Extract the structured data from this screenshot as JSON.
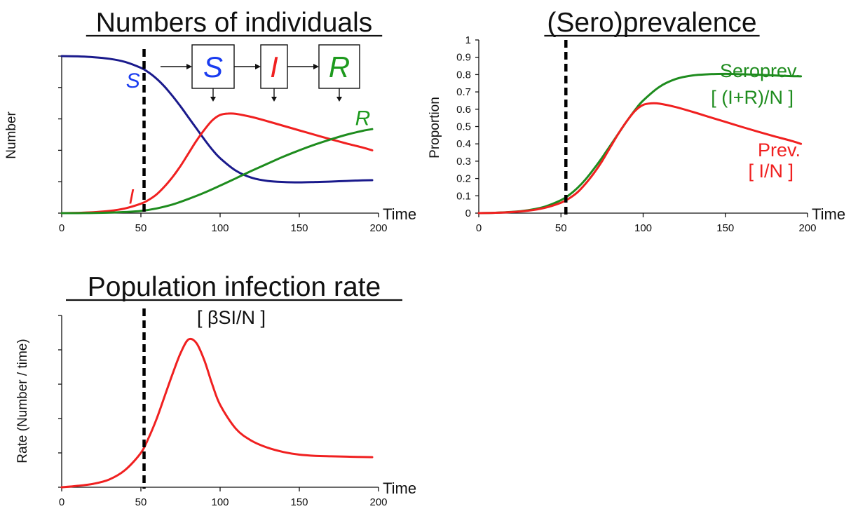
{
  "colors": {
    "S": "#1a1a8c",
    "I": "#f02020",
    "R": "#1e8c1e",
    "box_S": "#1a3cf0",
    "box_I": "#f02020",
    "box_R": "#1e9a1e"
  },
  "diagram": {
    "boxes": [
      "S",
      "I",
      "R"
    ]
  },
  "chart_data": [
    {
      "type": "line",
      "title": "Numbers of individuals",
      "xlabel": "Time",
      "ylabel": "Number",
      "xlim": [
        0,
        200
      ],
      "xticks": [
        "0",
        "50",
        "100",
        "150",
        "200"
      ],
      "ylim": [
        0,
        1
      ],
      "y_tick_labels": false,
      "vline_x": 52,
      "series": [
        {
          "name": "S",
          "color": "#1a1a8c",
          "x": [
            0,
            10,
            20,
            30,
            40,
            50,
            55,
            60,
            65,
            70,
            75,
            80,
            85,
            90,
            95,
            100,
            110,
            120,
            130,
            140,
            150,
            160,
            170,
            180,
            190,
            196
          ],
          "y": [
            1.0,
            0.998,
            0.993,
            0.983,
            0.963,
            0.925,
            0.895,
            0.855,
            0.805,
            0.745,
            0.68,
            0.61,
            0.54,
            0.47,
            0.405,
            0.35,
            0.27,
            0.225,
            0.205,
            0.198,
            0.196,
            0.198,
            0.201,
            0.205,
            0.209,
            0.21
          ]
        },
        {
          "name": "I",
          "color": "#f02020",
          "x": [
            0,
            10,
            20,
            30,
            40,
            50,
            55,
            60,
            65,
            70,
            75,
            80,
            85,
            90,
            95,
            100,
            105,
            110,
            120,
            130,
            140,
            150,
            160,
            170,
            180,
            190,
            196
          ],
          "y": [
            0.0,
            0.002,
            0.006,
            0.014,
            0.03,
            0.06,
            0.085,
            0.12,
            0.17,
            0.23,
            0.3,
            0.38,
            0.46,
            0.53,
            0.59,
            0.625,
            0.634,
            0.632,
            0.612,
            0.585,
            0.556,
            0.527,
            0.498,
            0.47,
            0.443,
            0.418,
            0.4
          ]
        },
        {
          "name": "R",
          "color": "#1e8c1e",
          "x": [
            0,
            10,
            20,
            30,
            40,
            50,
            60,
            70,
            80,
            90,
            100,
            110,
            120,
            130,
            140,
            150,
            160,
            170,
            180,
            190,
            196
          ],
          "y": [
            0.0,
            0.0,
            0.001,
            0.003,
            0.007,
            0.014,
            0.03,
            0.055,
            0.09,
            0.13,
            0.175,
            0.222,
            0.27,
            0.315,
            0.36,
            0.4,
            0.437,
            0.47,
            0.5,
            0.524,
            0.535
          ]
        }
      ],
      "labels": [
        {
          "text": "S",
          "color": "#1a3cf0",
          "x": 45,
          "y": 0.8
        },
        {
          "text": "I",
          "color": "#f02020",
          "x": 44,
          "y": 0.06
        },
        {
          "text": "R",
          "color": "#1e9a1e",
          "x": 190,
          "y": 0.56
        }
      ]
    },
    {
      "type": "line",
      "title": "(Sero)prevalence",
      "xlabel": "Time",
      "ylabel": "Proportion",
      "xlim": [
        0,
        200
      ],
      "xticks": [
        "0",
        "50",
        "100",
        "150",
        "200"
      ],
      "ylim": [
        0,
        1
      ],
      "yticks": [
        "0",
        "0.1",
        "0.2",
        "0.3",
        "0.4",
        "0.5",
        "0.6",
        "0.7",
        "0.8",
        "0.9",
        "1"
      ],
      "vline_x": 53,
      "series": [
        {
          "name": "Seroprev.",
          "color": "#1e8c1e",
          "x": [
            0,
            10,
            20,
            30,
            40,
            50,
            55,
            60,
            65,
            70,
            75,
            80,
            85,
            90,
            95,
            100,
            110,
            120,
            130,
            140,
            150,
            160,
            170,
            180,
            190,
            196
          ],
          "y": [
            0.0,
            0.002,
            0.007,
            0.017,
            0.037,
            0.075,
            0.105,
            0.145,
            0.195,
            0.255,
            0.32,
            0.39,
            0.46,
            0.53,
            0.595,
            0.65,
            0.73,
            0.775,
            0.795,
            0.802,
            0.804,
            0.802,
            0.799,
            0.795,
            0.791,
            0.79
          ]
        },
        {
          "name": "Prev.",
          "color": "#f02020",
          "x": [
            0,
            10,
            20,
            30,
            40,
            50,
            55,
            60,
            65,
            70,
            75,
            80,
            85,
            90,
            95,
            100,
            105,
            110,
            120,
            130,
            140,
            150,
            160,
            170,
            180,
            190,
            196
          ],
          "y": [
            0.0,
            0.002,
            0.006,
            0.014,
            0.03,
            0.06,
            0.085,
            0.12,
            0.17,
            0.23,
            0.3,
            0.38,
            0.46,
            0.53,
            0.59,
            0.625,
            0.634,
            0.632,
            0.612,
            0.585,
            0.556,
            0.527,
            0.498,
            0.47,
            0.443,
            0.418,
            0.4
          ]
        }
      ],
      "annotations": {
        "seroprev_name": "Seroprev.",
        "seroprev_formula": "[ (I+R)/N ]",
        "prev_name": "Prev.",
        "prev_formula": "[ I/N ]"
      }
    },
    {
      "type": "line",
      "title": "Population infection rate",
      "subtitle": "[ βSI/N ]",
      "xlabel": "Time",
      "ylabel": "Rate (Number / time)",
      "xlim": [
        0,
        200
      ],
      "xticks": [
        "0",
        "50",
        "100",
        "150",
        "200"
      ],
      "ylim": [
        0,
        1
      ],
      "y_tick_labels": false,
      "vline_x": 52,
      "series": [
        {
          "name": "",
          "color": "#f02020",
          "x": [
            0,
            10,
            20,
            30,
            40,
            50,
            55,
            60,
            65,
            70,
            75,
            80,
            85,
            90,
            95,
            100,
            110,
            120,
            130,
            140,
            150,
            160,
            170,
            180,
            190,
            196
          ],
          "y": [
            0.0,
            0.008,
            0.02,
            0.045,
            0.1,
            0.2,
            0.29,
            0.4,
            0.53,
            0.66,
            0.78,
            0.86,
            0.84,
            0.74,
            0.6,
            0.48,
            0.34,
            0.27,
            0.23,
            0.205,
            0.19,
            0.183,
            0.18,
            0.178,
            0.176,
            0.175
          ]
        }
      ]
    }
  ]
}
